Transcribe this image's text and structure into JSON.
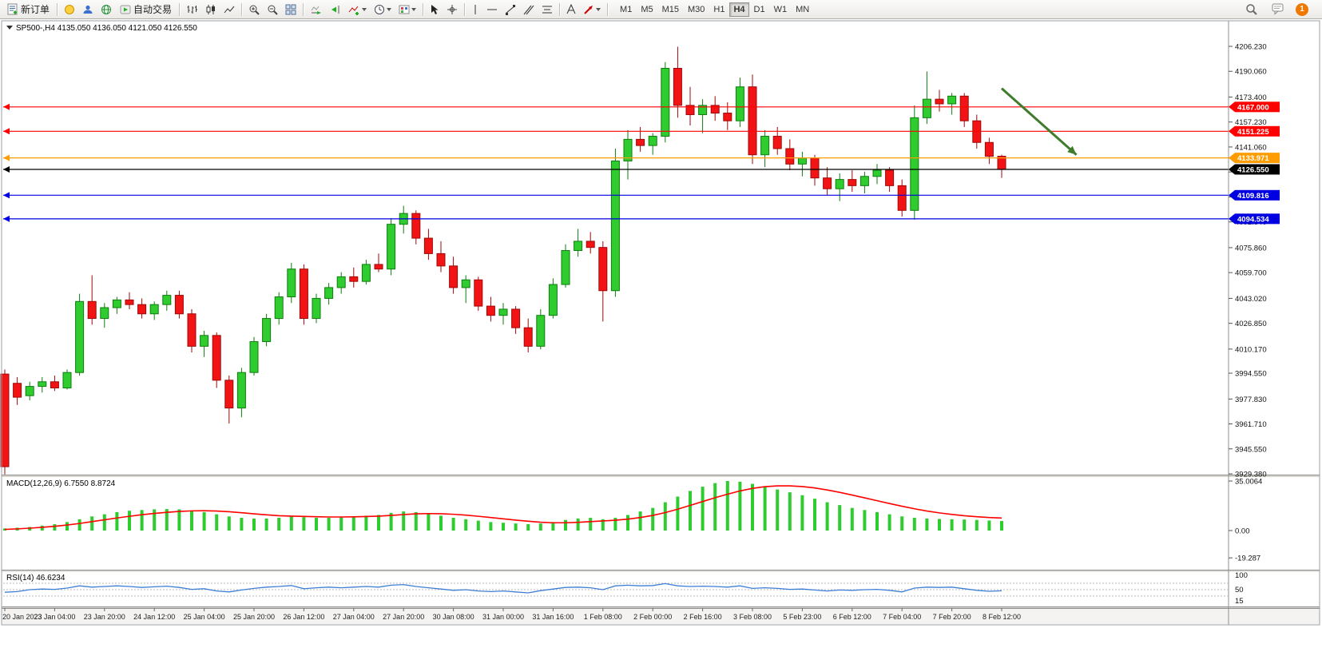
{
  "toolbar": {
    "new_order_label": "新订单",
    "autotrading_label": "自动交易",
    "timeframes": [
      "M1",
      "M5",
      "M15",
      "M30",
      "H1",
      "H4",
      "D1",
      "W1",
      "MN"
    ],
    "active_timeframe": "H4",
    "notification_count": "1",
    "icons": [
      "new-order-icon",
      "favorites-icon",
      "community-icon",
      "web-icon",
      "autotrading-icon",
      "bar-chart-icon",
      "candlestick-icon",
      "line-chart-icon",
      "zoom-in-icon",
      "zoom-out-icon",
      "tile-windows-icon",
      "auto-scroll-icon",
      "chart-shift-icon",
      "indicators-icon",
      "periods-icon",
      "templates-icon",
      "cursor-icon",
      "crosshair-icon",
      "vertical-line-icon",
      "horizontal-line-icon",
      "trendline-icon",
      "channel-icon",
      "fibonacci-icon",
      "text-icon",
      "arrows-icon",
      "shapes-icon",
      "search-icon",
      "chat-icon",
      "notification-badge"
    ]
  },
  "chart": {
    "symbol_title": "SP500-,H4",
    "ohlc_text": "4135.050 4136.050 4121.050 4126.550"
  },
  "macd": {
    "label": "MACD(12,26,9)",
    "values_text": "6.7550 8.8724",
    "scale": [
      {
        "text": "35.0064",
        "value": 35.0064
      },
      {
        "text": "0.00",
        "value": 0
      },
      {
        "text": "-19.287",
        "value": -19.287
      }
    ]
  },
  "rsi": {
    "label": "RSI(14)",
    "value_text": "46.6234",
    "scale": [
      {
        "text": "100",
        "value": 100
      },
      {
        "text": "50",
        "value": 50
      },
      {
        "text": "15",
        "value": 15
      }
    ]
  },
  "chart_data": {
    "type": "candlestick",
    "symbol": "SP500-",
    "timeframe": "H4",
    "last_ohlc": {
      "open": 4135.05,
      "high": 4136.05,
      "low": 4121.05,
      "close": 4126.55
    },
    "price_axis": {
      "max": 4206.23,
      "min": 3929.38,
      "ticks": [
        "4206.230",
        "4190.060",
        "4173.400",
        "4157.230",
        "4141.060",
        "4124.880",
        "4108.710",
        "4092.540",
        "4075.860",
        "4059.700",
        "4043.020",
        "4026.850",
        "4010.170",
        "3994.550",
        "3977.830",
        "3961.710",
        "3945.550",
        "3929.380"
      ]
    },
    "candles": [
      [
        3994,
        3997,
        3929,
        3934
      ],
      [
        3988,
        3992,
        3974,
        3979
      ],
      [
        3980,
        3989,
        3977,
        3986
      ],
      [
        3986,
        3992,
        3982,
        3989
      ],
      [
        3989,
        3993,
        3983,
        3985
      ],
      [
        3985,
        3997,
        3984,
        3995
      ],
      [
        3995,
        4046,
        3993,
        4041
      ],
      [
        4041,
        4058,
        4026,
        4030
      ],
      [
        4030,
        4040,
        4024,
        4037
      ],
      [
        4037,
        4044,
        4033,
        4042
      ],
      [
        4042,
        4047,
        4036,
        4039
      ],
      [
        4039,
        4043,
        4030,
        4033
      ],
      [
        4033,
        4041,
        4029,
        4039
      ],
      [
        4039,
        4048,
        4035,
        4045
      ],
      [
        4045,
        4048,
        4030,
        4033
      ],
      [
        4033,
        4036,
        4008,
        4012
      ],
      [
        4012,
        4022,
        4005,
        4019
      ],
      [
        4019,
        4021,
        3985,
        3990
      ],
      [
        3990,
        3993,
        3962,
        3972
      ],
      [
        3972,
        3998,
        3966,
        3995
      ],
      [
        3995,
        4018,
        3993,
        4015
      ],
      [
        4015,
        4033,
        4012,
        4030
      ],
      [
        4030,
        4047,
        4026,
        4044
      ],
      [
        4044,
        4066,
        4040,
        4062
      ],
      [
        4062,
        4065,
        4026,
        4030
      ],
      [
        4030,
        4046,
        4027,
        4043
      ],
      [
        4043,
        4053,
        4039,
        4050
      ],
      [
        4050,
        4060,
        4046,
        4057
      ],
      [
        4057,
        4063,
        4050,
        4054
      ],
      [
        4054,
        4068,
        4052,
        4065
      ],
      [
        4065,
        4072,
        4060,
        4062
      ],
      [
        4062,
        4095,
        4058,
        4091
      ],
      [
        4091,
        4103,
        4085,
        4098
      ],
      [
        4098,
        4100,
        4078,
        4082
      ],
      [
        4082,
        4088,
        4068,
        4072
      ],
      [
        4072,
        4080,
        4060,
        4064
      ],
      [
        4064,
        4070,
        4046,
        4050
      ],
      [
        4050,
        4058,
        4040,
        4055
      ],
      [
        4055,
        4057,
        4035,
        4038
      ],
      [
        4038,
        4044,
        4028,
        4032
      ],
      [
        4032,
        4040,
        4026,
        4036
      ],
      [
        4036,
        4038,
        4020,
        4024
      ],
      [
        4024,
        4030,
        4008,
        4012
      ],
      [
        4012,
        4036,
        4010,
        4032
      ],
      [
        4032,
        4056,
        4030,
        4052
      ],
      [
        4052,
        4078,
        4050,
        4074
      ],
      [
        4074,
        4088,
        4070,
        4080
      ],
      [
        4080,
        4086,
        4072,
        4076
      ],
      [
        4076,
        4080,
        4028,
        4048
      ],
      [
        4048,
        4140,
        4044,
        4132
      ],
      [
        4132,
        4152,
        4120,
        4146
      ],
      [
        4146,
        4154,
        4138,
        4142
      ],
      [
        4142,
        4150,
        4136,
        4148
      ],
      [
        4148,
        4196,
        4144,
        4192
      ],
      [
        4192,
        4206,
        4160,
        4168
      ],
      [
        4168,
        4180,
        4155,
        4162
      ],
      [
        4162,
        4172,
        4150,
        4168
      ],
      [
        4168,
        4174,
        4158,
        4163
      ],
      [
        4163,
        4170,
        4152,
        4158
      ],
      [
        4158,
        4186,
        4154,
        4180
      ],
      [
        4180,
        4188,
        4130,
        4136
      ],
      [
        4136,
        4152,
        4128,
        4148
      ],
      [
        4148,
        4154,
        4136,
        4140
      ],
      [
        4140,
        4146,
        4126,
        4130
      ],
      [
        4130,
        4138,
        4122,
        4134
      ],
      [
        4134,
        4136,
        4116,
        4121
      ],
      [
        4121,
        4128,
        4110,
        4114
      ],
      [
        4114,
        4124,
        4106,
        4120
      ],
      [
        4120,
        4126,
        4112,
        4116
      ],
      [
        4116,
        4125,
        4111,
        4122
      ],
      [
        4122,
        4130,
        4117,
        4126
      ],
      [
        4126,
        4128,
        4112,
        4116
      ],
      [
        4116,
        4120,
        4096,
        4100
      ],
      [
        4100,
        4168,
        4094,
        4160
      ],
      [
        4160,
        4190,
        4156,
        4172
      ],
      [
        4172,
        4178,
        4164,
        4169
      ],
      [
        4169,
        4176,
        4162,
        4174
      ],
      [
        4174,
        4176,
        4154,
        4158
      ],
      [
        4158,
        4162,
        4140,
        4144
      ],
      [
        4144,
        4147,
        4130,
        4135
      ],
      [
        4135.05,
        4136.05,
        4121.05,
        4126.55
      ]
    ],
    "time_labels": [
      {
        "i": 0,
        "t": "20 Jan 2023"
      },
      {
        "i": 4,
        "t": "23 Jan 04:00"
      },
      {
        "i": 8,
        "t": "23 Jan 20:00"
      },
      {
        "i": 12,
        "t": "24 Jan 12:00"
      },
      {
        "i": 16,
        "t": "25 Jan 04:00"
      },
      {
        "i": 20,
        "t": "25 Jan 20:00"
      },
      {
        "i": 24,
        "t": "26 Jan 12:00"
      },
      {
        "i": 28,
        "t": "27 Jan 04:00"
      },
      {
        "i": 32,
        "t": "27 Jan 20:00"
      },
      {
        "i": 36,
        "t": "30 Jan 08:00"
      },
      {
        "i": 40,
        "t": "31 Jan 00:00"
      },
      {
        "i": 44,
        "t": "31 Jan 16:00"
      },
      {
        "i": 48,
        "t": "1 Feb 08:00"
      },
      {
        "i": 52,
        "t": "2 Feb 00:00"
      },
      {
        "i": 56,
        "t": "2 Feb 16:00"
      },
      {
        "i": 60,
        "t": "3 Feb 08:00"
      },
      {
        "i": 64,
        "t": "5 Feb 23:00"
      },
      {
        "i": 68,
        "t": "6 Feb 12:00"
      },
      {
        "i": 72,
        "t": "7 Feb 04:00"
      },
      {
        "i": 76,
        "t": "7 Feb 20:00"
      },
      {
        "i": 80,
        "t": "8 Feb 12:00"
      }
    ],
    "hlines": [
      {
        "price": 4167.0,
        "label": "4167.000",
        "color": "#ff0000"
      },
      {
        "price": 4151.225,
        "label": "4151.225",
        "color": "#ff0000"
      },
      {
        "price": 4133.971,
        "label": "4133.971",
        "color": "#ff9c00"
      },
      {
        "price": 4126.55,
        "label": "4126.550",
        "color": "#000000"
      },
      {
        "price": 4109.816,
        "label": "4109.816",
        "color": "#0000e0"
      },
      {
        "price": 4094.534,
        "label": "4094.534",
        "color": "#0000e0"
      }
    ],
    "arrow": {
      "i1": 80,
      "p1": 4179,
      "i2": 86,
      "p2": 4136,
      "color": "#3f7d2c"
    },
    "colors": {
      "up": "#2ecc2e",
      "up_dark": "#0f7d0f",
      "down": "#f21414",
      "down_dark": "#9e0808",
      "macd_hist": "#2ecc2e",
      "macd_signal": "#ff0000",
      "rsi": "#3e7fd6"
    },
    "indicators": {
      "macd": {
        "histogram": [
          1.5,
          2,
          2.5,
          3.5,
          4.5,
          6,
          8,
          10,
          11.5,
          13,
          14,
          14.5,
          15,
          15.2,
          15,
          14,
          13,
          11.5,
          10,
          9,
          8.5,
          8.5,
          9,
          10,
          9.5,
          9,
          9,
          9.5,
          10,
          10.5,
          11,
          12.5,
          13.5,
          13,
          12,
          10.5,
          9,
          8,
          7,
          6,
          5.5,
          5,
          4.5,
          5,
          6,
          7.5,
          8.5,
          9,
          8,
          9,
          11,
          13.5,
          16,
          20,
          24,
          28,
          31,
          33.5,
          35,
          34.5,
          33,
          31,
          29,
          27,
          25,
          22.5,
          20,
          18,
          16,
          14.5,
          13,
          11.5,
          10,
          9,
          8.5,
          8.2,
          8,
          7.8,
          7.5,
          7.1,
          6.76
        ],
        "signal": [
          0.8,
          1.2,
          1.7,
          2.3,
          3,
          3.9,
          5,
          6.3,
          7.6,
          8.9,
          10.1,
          11.2,
          12.1,
          12.9,
          13.5,
          13.9,
          14,
          13.8,
          13.3,
          12.6,
          11.8,
          11.1,
          10.5,
          10.2,
          10,
          9.8,
          9.6,
          9.6,
          9.7,
          9.9,
          10.2,
          10.7,
          11.3,
          11.8,
          12,
          11.9,
          11.5,
          10.9,
          10.1,
          9.2,
          8.3,
          7.4,
          6.6,
          5.9,
          5.5,
          5.5,
          5.8,
          6.3,
          6.8,
          7.3,
          8.1,
          9.2,
          10.7,
          12.7,
          15.1,
          17.8,
          20.5,
          23.2,
          25.7,
          28,
          29.8,
          31,
          31.6,
          31.6,
          31.1,
          30.1,
          28.7,
          27,
          25.1,
          23.1,
          21.1,
          19.1,
          17.2,
          15.4,
          13.8,
          12.5,
          11.4,
          10.5,
          9.8,
          9.2,
          8.87
        ]
      },
      "rsi": {
        "values": [
          42,
          44,
          50,
          52,
          51,
          55,
          62,
          58,
          60,
          62,
          60,
          57,
          59,
          61,
          57,
          51,
          53,
          46,
          43,
          49,
          54,
          58,
          60,
          63,
          53,
          56,
          58,
          56,
          58,
          60,
          58,
          64,
          66,
          60,
          56,
          52,
          48,
          50,
          46,
          44,
          46,
          43,
          40,
          47,
          52,
          57,
          58,
          56,
          50,
          62,
          64,
          62,
          63,
          69,
          62,
          60,
          61,
          60,
          58,
          62,
          54,
          56,
          54,
          51,
          52,
          49,
          46,
          49,
          48,
          50,
          51,
          48,
          43,
          55,
          58,
          57,
          58,
          53,
          48,
          45,
          46.62
        ]
      }
    }
  }
}
